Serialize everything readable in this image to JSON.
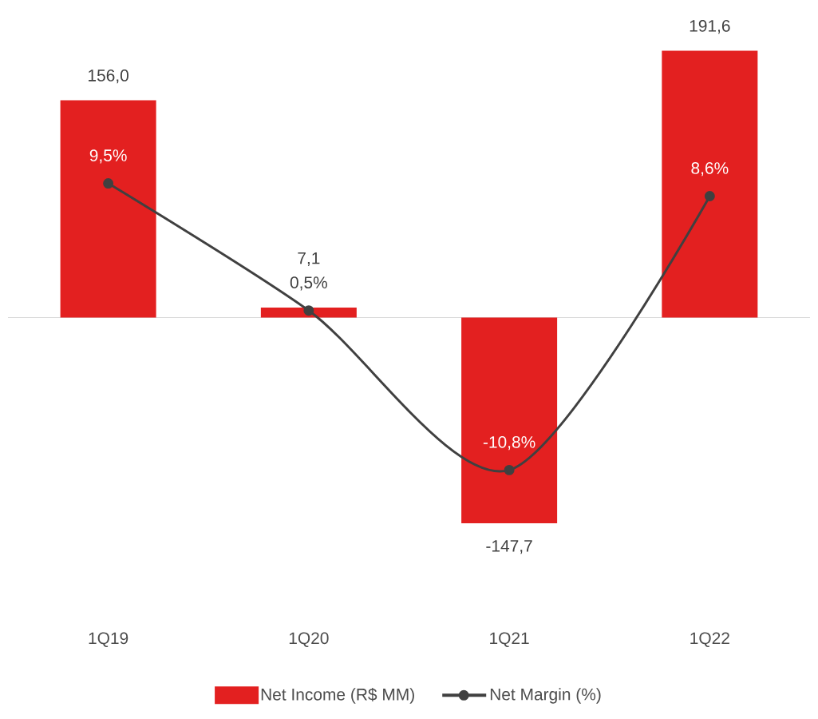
{
  "chart_data": {
    "type": "bar",
    "categories": [
      "1Q19",
      "1Q20",
      "1Q21",
      "1Q22"
    ],
    "series": [
      {
        "name": "Net Income (R$ MM)",
        "color": "#e32020",
        "values": [
          156.0,
          7.1,
          -147.7,
          191.6
        ],
        "value_labels": [
          "156,0",
          "7,1",
          "-147,7",
          "191,6"
        ]
      },
      {
        "name": "Net Margin (%)",
        "type": "line",
        "axis": "y2",
        "color": "#404040",
        "marker": "circle",
        "values": [
          9.5,
          0.5,
          -10.8,
          8.6
        ],
        "value_labels": [
          "9,5%",
          "0,5%",
          "-10,8%",
          "8,6%"
        ]
      }
    ],
    "legend": "bottom"
  }
}
